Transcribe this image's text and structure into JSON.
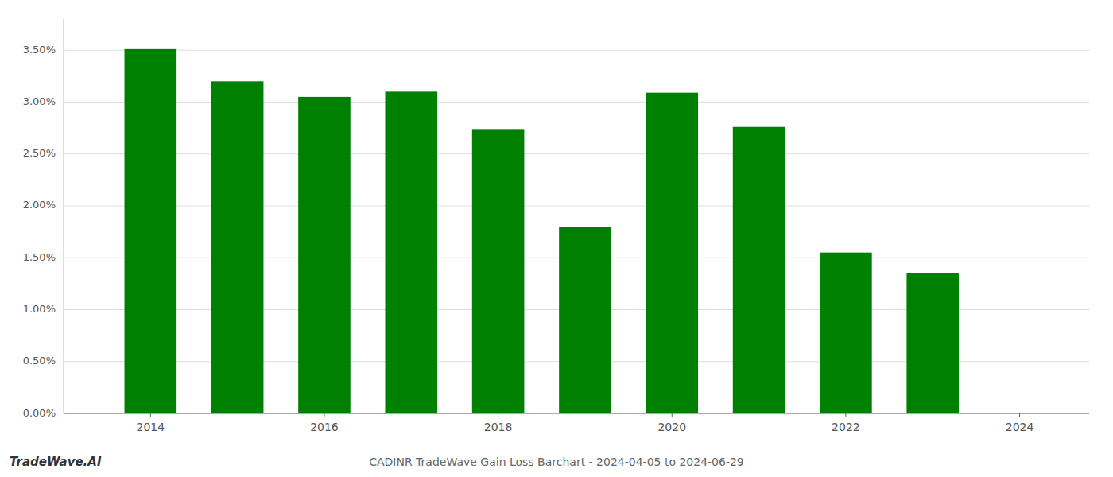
{
  "chart_data": {
    "type": "bar",
    "title": "CADINR TradeWave Gain Loss Barchart - 2024-04-05 to 2024-06-29",
    "annotations": [
      "TradeWave.AI"
    ],
    "x": [
      2014,
      2015,
      2016,
      2017,
      2018,
      2019,
      2020,
      2021,
      2022,
      2023
    ],
    "values": [
      0.0351,
      0.032,
      0.0305,
      0.031,
      0.0274,
      0.018,
      0.0309,
      0.0276,
      0.0155,
      0.0135
    ],
    "color": "#008000",
    "xlim": [
      2013.0,
      2024.8
    ],
    "xticks": [
      2014,
      2016,
      2018,
      2020,
      2022,
      2024
    ],
    "ylim": [
      0,
      0.038
    ],
    "yticks": [
      {
        "value": 0,
        "label": "0.00%"
      },
      {
        "value": 0.005,
        "label": "0.50%"
      },
      {
        "value": 0.01,
        "label": "1.00%"
      },
      {
        "value": 0.015,
        "label": "1.50%"
      },
      {
        "value": 0.02,
        "label": "2.00%"
      },
      {
        "value": 0.025,
        "label": "2.50%"
      },
      {
        "value": 0.03,
        "label": "3.00%"
      },
      {
        "value": 0.035,
        "label": "3.50%"
      }
    ],
    "grid": true
  }
}
